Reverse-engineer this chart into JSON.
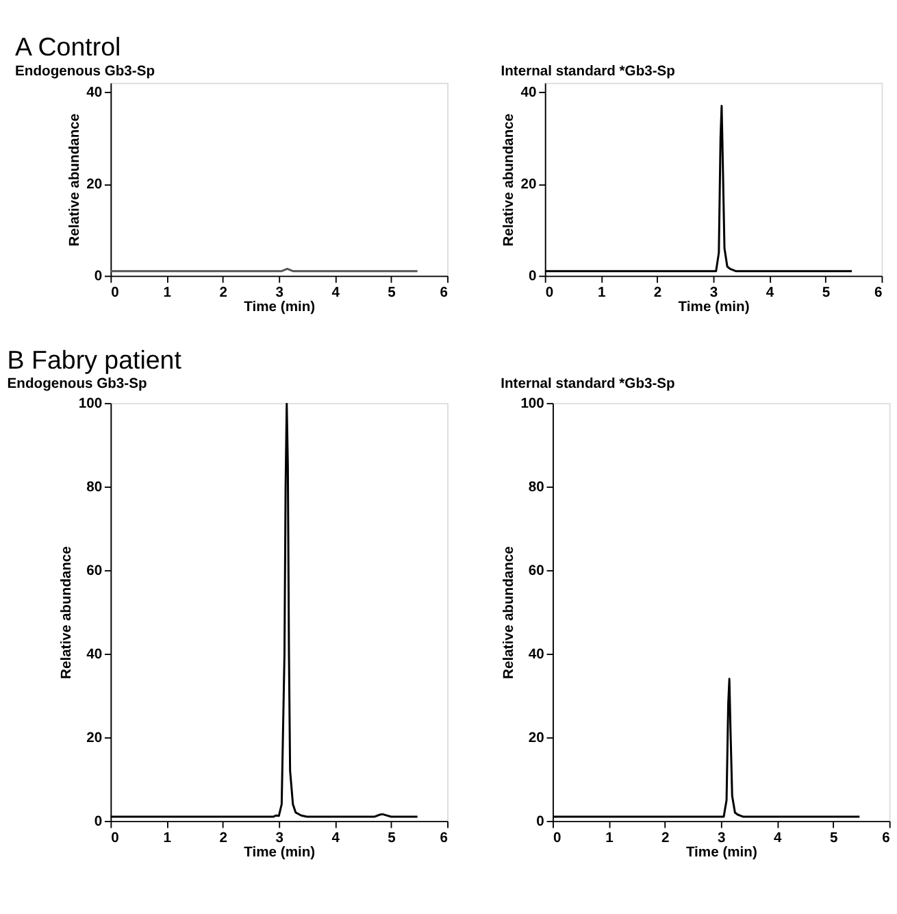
{
  "chart_data": [
    {
      "type": "line",
      "title": "A   Control",
      "subtitle": "Endogenous Gb3-Sp",
      "xlabel": "Time (min)",
      "ylabel": "Relative abundance",
      "xlim": [
        0,
        6
      ],
      "xticks": [
        0,
        1,
        2,
        3,
        4,
        5,
        6
      ],
      "ylim": [
        0,
        42
      ],
      "yticks": [
        0,
        20,
        40
      ],
      "grid": false,
      "series": [
        {
          "color": "#555555",
          "x": [
            0,
            3.05,
            3.15,
            3.25,
            5.47
          ],
          "values": [
            1,
            1,
            1.5,
            1,
            1
          ]
        }
      ]
    },
    {
      "type": "line",
      "title": "Internal standard *Gb3-Sp",
      "xlabel": "Time (min)",
      "ylabel": "Relative abundance",
      "xlim": [
        0,
        6
      ],
      "xticks": [
        0,
        1,
        2,
        3,
        4,
        5,
        6
      ],
      "ylim": [
        0,
        42
      ],
      "yticks": [
        0,
        20,
        40
      ],
      "grid": false,
      "series": [
        {
          "color": "#000000",
          "x": [
            0,
            3.05,
            3.1,
            3.13,
            3.15,
            3.17,
            3.2,
            3.25,
            3.3,
            3.4,
            5.47
          ],
          "values": [
            1,
            1,
            5,
            30,
            37,
            25,
            6,
            2,
            1.5,
            1,
            1
          ]
        }
      ]
    },
    {
      "type": "line",
      "title": "B   Fabry patient",
      "subtitle": "Endogenous Gb3-Sp",
      "xlabel": "Time (min)",
      "ylabel": "Relative abundance",
      "xlim": [
        0,
        6
      ],
      "xticks": [
        0,
        1,
        2,
        3,
        4,
        5,
        6
      ],
      "ylim": [
        0,
        100
      ],
      "yticks": [
        0,
        20,
        40,
        60,
        80,
        100
      ],
      "grid": false,
      "series": [
        {
          "color": "#000000",
          "x": [
            0,
            2.9,
            2.95,
            3.0,
            3.05,
            3.1,
            3.12,
            3.14,
            3.16,
            3.18,
            3.2,
            3.25,
            3.3,
            3.4,
            3.5,
            4.7,
            4.8,
            4.85,
            4.9,
            5.0,
            5.47
          ],
          "values": [
            1,
            1,
            1.3,
            1.2,
            4,
            40,
            80,
            100,
            85,
            40,
            12,
            4,
            2,
            1.3,
            1,
            1,
            1.5,
            1.6,
            1.4,
            1,
            1
          ]
        }
      ]
    },
    {
      "type": "line",
      "title": "Internal standard *Gb3-Sp",
      "xlabel": "Time (min)",
      "ylabel": "Relative abundance",
      "xlim": [
        0,
        6
      ],
      "xticks": [
        0,
        1,
        2,
        3,
        4,
        5,
        6
      ],
      "ylim": [
        0,
        100
      ],
      "yticks": [
        0,
        20,
        40,
        60,
        80,
        100
      ],
      "grid": false,
      "series": [
        {
          "color": "#000000",
          "x": [
            0,
            3.05,
            3.1,
            3.13,
            3.15,
            3.17,
            3.2,
            3.25,
            3.3,
            3.4,
            5.47
          ],
          "values": [
            1,
            1,
            5,
            28,
            34,
            22,
            6,
            2,
            1.5,
            1,
            1
          ]
        }
      ]
    }
  ]
}
